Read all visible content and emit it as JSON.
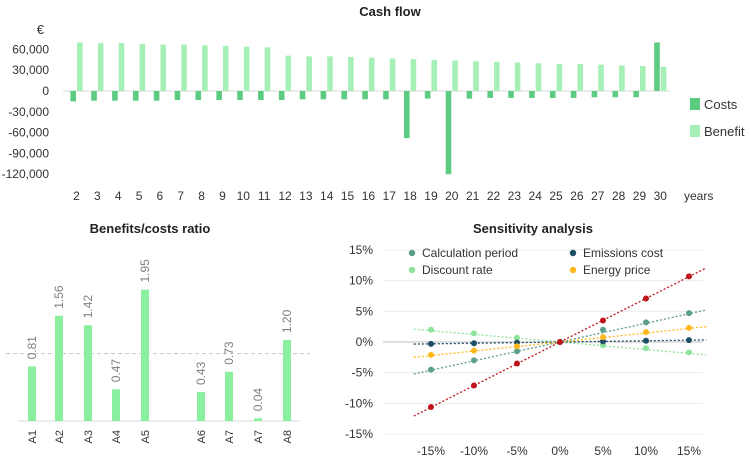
{
  "colors": {
    "costs": "#5ccc82",
    "benefit": "#a6f0b8",
    "ratio_bar": "#8af0a0",
    "grid": "#d9d9d9",
    "axis_text": "#333333",
    "ratio_label": "#7f7f7f",
    "ref_line": "#c8c8c8"
  },
  "chart_data": [
    {
      "id": "cashflow",
      "type": "bar",
      "title": "Cash flow",
      "ylabel": "€",
      "xlabel": "years",
      "ylim": [
        -120000,
        60000
      ],
      "yticks": [
        60000,
        30000,
        0,
        -30000,
        -60000,
        -90000,
        -120000
      ],
      "ytick_labels": [
        "60,000",
        "30,000",
        "0",
        "-30,000",
        "-60,000",
        "-90,000",
        "-120,000"
      ],
      "categories": [
        "2",
        "3",
        "4",
        "5",
        "6",
        "7",
        "8",
        "9",
        "10",
        "11",
        "12",
        "13",
        "14",
        "15",
        "16",
        "17",
        "18",
        "19",
        "20",
        "21",
        "22",
        "23",
        "24",
        "25",
        "26",
        "27",
        "28",
        "29",
        "30"
      ],
      "legend_position": "right",
      "series": [
        {
          "name": "Costs",
          "values": [
            -15000,
            -14000,
            -14000,
            -14000,
            -14000,
            -13000,
            -13000,
            -13000,
            -13000,
            -13000,
            -13000,
            -12000,
            -12000,
            -12000,
            -12000,
            -12000,
            -68000,
            -11000,
            -120000,
            -11000,
            -10000,
            -10000,
            -10000,
            -10000,
            -10000,
            -9000,
            -9000,
            -9000,
            70000
          ]
        },
        {
          "name": "Benefit",
          "values": [
            70000,
            69000,
            69000,
            68000,
            67000,
            67000,
            66000,
            65000,
            64000,
            63000,
            51000,
            50000,
            50000,
            49000,
            48000,
            47000,
            46000,
            45000,
            44000,
            43000,
            42000,
            41000,
            40000,
            39000,
            39000,
            38000,
            37000,
            36000,
            35000
          ]
        }
      ]
    },
    {
      "id": "ratio",
      "type": "bar",
      "title": "Benefits/costs ratio",
      "categories": [
        "A1",
        "A2",
        "A3",
        "A4",
        "A5",
        "A6",
        "A7",
        "A7",
        "A8"
      ],
      "values": [
        0.81,
        1.56,
        1.42,
        0.47,
        1.95,
        0.43,
        0.73,
        0.04,
        1.2
      ],
      "value_labels": [
        "0.81",
        "1.56",
        "1.42",
        "0.47",
        "1.95",
        "0.43",
        "0.73",
        "0.04",
        "1.20"
      ],
      "ylim": [
        0,
        2.0
      ],
      "reference_line": 1.0
    },
    {
      "id": "sensitivity",
      "type": "scatter",
      "title": "Sensitivity analysis",
      "x": [
        "-15%",
        "-10%",
        "-5%",
        "0%",
        "5%",
        "10%",
        "15%"
      ],
      "x_values": [
        -15,
        -10,
        -5,
        0,
        5,
        10,
        15
      ],
      "yticks": [
        15,
        10,
        5,
        0,
        -5,
        -10,
        -15
      ],
      "ytick_labels": [
        "15%",
        "10%",
        "5%",
        "0%",
        "-5%",
        "-10%",
        "-15%"
      ],
      "ylim": [
        -15,
        15
      ],
      "legend_position": "top",
      "series": [
        {
          "name": "Calculation period",
          "color": "#5b9e8a",
          "values": [
            -4.5,
            -3.0,
            -1.5,
            0,
            2.0,
            3.2,
            4.7
          ]
        },
        {
          "name": "Discount rate",
          "color": "#8fe39c",
          "values": [
            2.0,
            1.4,
            0.7,
            0,
            -0.5,
            -1.0,
            -1.7
          ]
        },
        {
          "name": "Emissions cost",
          "color": "#1e4d66",
          "values": [
            -0.3,
            -0.2,
            -0.1,
            0,
            0.1,
            0.2,
            0.3
          ]
        },
        {
          "name": "Energy price",
          "color": "#ffb81c",
          "values": [
            -2.1,
            -1.4,
            -0.7,
            0,
            0.8,
            1.6,
            2.3
          ]
        },
        {
          "name": "",
          "color": "#c0141c",
          "values": [
            -10.6,
            -7.1,
            -3.5,
            0,
            3.5,
            7.1,
            10.7
          ]
        }
      ]
    }
  ]
}
